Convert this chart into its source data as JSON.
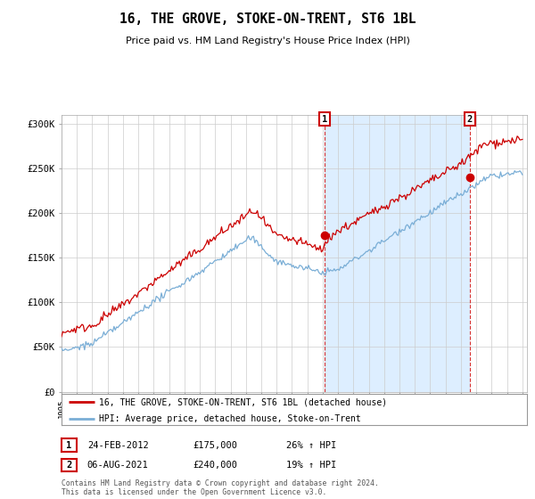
{
  "title": "16, THE GROVE, STOKE-ON-TRENT, ST6 1BL",
  "subtitle": "Price paid vs. HM Land Registry's House Price Index (HPI)",
  "hpi_label": "HPI: Average price, detached house, Stoke-on-Trent",
  "property_label": "16, THE GROVE, STOKE-ON-TRENT, ST6 1BL (detached house)",
  "footnote": "Contains HM Land Registry data © Crown copyright and database right 2024.\nThis data is licensed under the Open Government Licence v3.0.",
  "transaction1_date": "24-FEB-2012",
  "transaction1_price": 175000,
  "transaction1_pct": "26% ↑ HPI",
  "transaction2_date": "06-AUG-2021",
  "transaction2_price": 240000,
  "transaction2_pct": "19% ↑ HPI",
  "t1_year": 2012.12,
  "t2_year": 2021.58,
  "red_color": "#cc0000",
  "blue_color": "#7aaed6",
  "shade_color": "#ddeeff",
  "ylim_min": 0,
  "ylim_max": 310000,
  "yticks": [
    0,
    50000,
    100000,
    150000,
    200000,
    250000,
    300000
  ],
  "ytick_labels": [
    "£0",
    "£50K",
    "£100K",
    "£150K",
    "£200K",
    "£250K",
    "£300K"
  ],
  "background_color": "#ffffff",
  "grid_color": "#cccccc"
}
